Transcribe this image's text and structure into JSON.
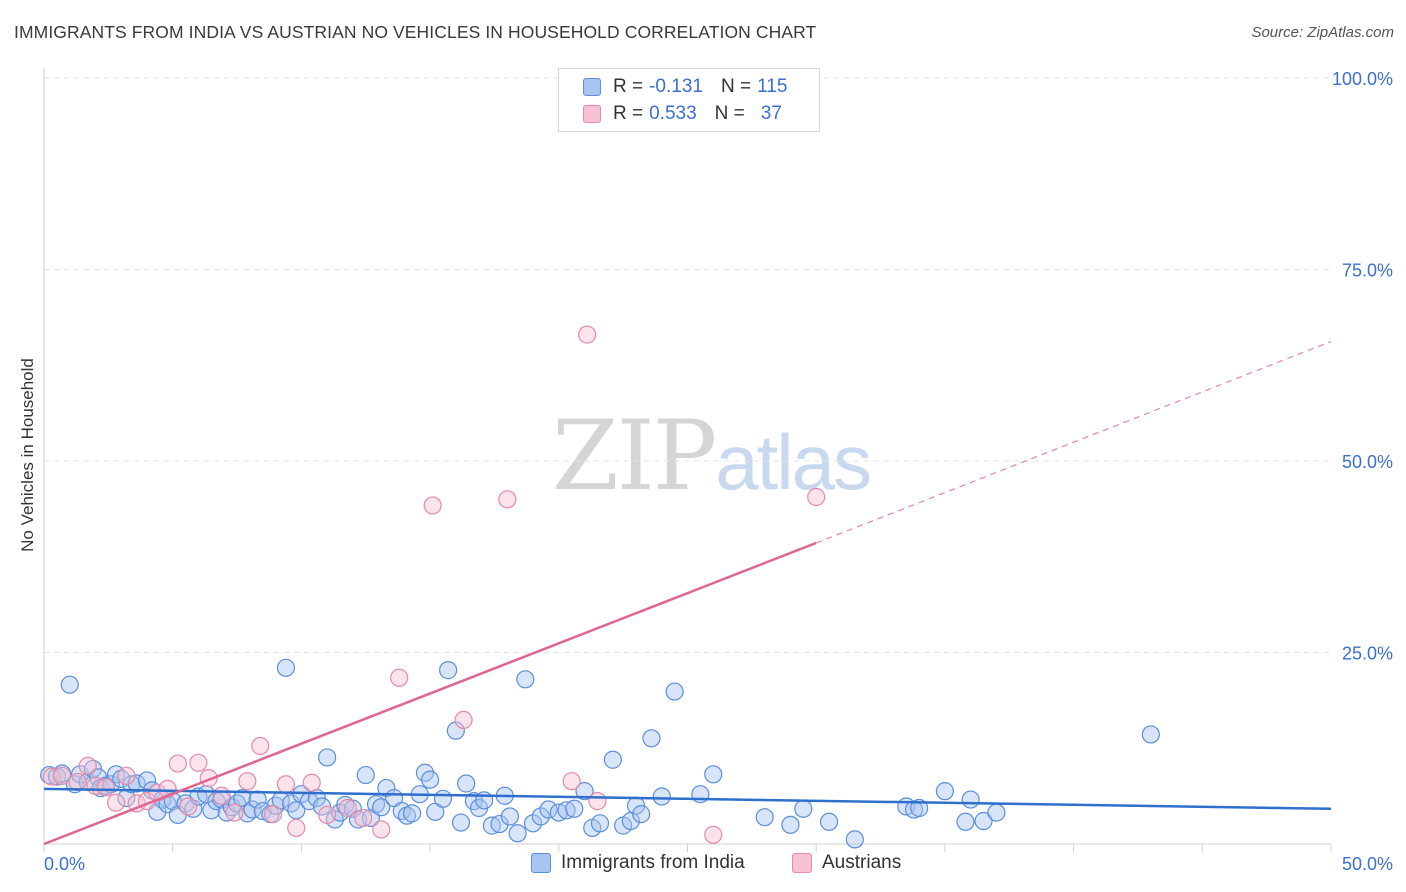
{
  "header": {
    "title": "IMMIGRANTS FROM INDIA VS AUSTRIAN NO VEHICLES IN HOUSEHOLD CORRELATION CHART",
    "source": "Source: ZipAtlas.com"
  },
  "watermark": {
    "zip": "ZIP",
    "atlas": "atlas"
  },
  "legend": {
    "rows": [
      {
        "r_label": "R =",
        "r_value": "-0.131",
        "n_label": "N =",
        "n_value": "115",
        "color": "#a8c4f0"
      },
      {
        "r_label": "R =",
        "r_value": "0.533",
        "n_label": "N =",
        "n_value": "37",
        "color": "#f5b8cc"
      }
    ]
  },
  "bottom_legend": [
    "Immigrants from India",
    "Austrians"
  ],
  "colors": {
    "india_fill": "#a8c4f0",
    "india_stroke": "#5b8fdc",
    "india_line": "#2e6fcc",
    "austria_fill": "#f7c2d3",
    "austria_stroke": "#e58aa8",
    "austria_line": "#e06692",
    "tick_label": "#3b6fd1",
    "grid": "#e3e3e3"
  },
  "chart_data": {
    "type": "scatter",
    "title": "IMMIGRANTS FROM INDIA VS AUSTRIAN NO VEHICLES IN HOUSEHOLD CORRELATION CHART",
    "xlabel": "",
    "ylabel": "No Vehicles in Household",
    "xlim": [
      0,
      50
    ],
    "ylim": [
      0,
      100
    ],
    "x_tick_labels": [
      "0.0%",
      "50.0%"
    ],
    "y_tick_values": [
      25,
      50,
      75,
      100
    ],
    "y_tick_labels": [
      "25.0%",
      "50.0%",
      "75.0%",
      "100.0%"
    ],
    "legend_position": "top-center",
    "series": [
      {
        "name": "Immigrants from India",
        "r": -0.131,
        "n": 115,
        "trend": {
          "x": [
            0,
            50
          ],
          "y": [
            7.2,
            4.6
          ]
        },
        "points": [
          [
            0.2,
            9.0
          ],
          [
            0.5,
            8.8
          ],
          [
            0.7,
            9.2
          ],
          [
            1.0,
            20.8
          ],
          [
            1.2,
            7.8
          ],
          [
            1.4,
            9.1
          ],
          [
            1.7,
            8.1
          ],
          [
            1.9,
            9.8
          ],
          [
            2.1,
            8.7
          ],
          [
            2.2,
            7.3
          ],
          [
            2.4,
            7.6
          ],
          [
            2.6,
            7.8
          ],
          [
            2.8,
            9.1
          ],
          [
            3.0,
            8.5
          ],
          [
            3.2,
            6.0
          ],
          [
            3.4,
            7.8
          ],
          [
            3.6,
            7.9
          ],
          [
            4.0,
            8.3
          ],
          [
            4.2,
            7.0
          ],
          [
            4.4,
            4.2
          ],
          [
            4.6,
            5.8
          ],
          [
            4.8,
            5.2
          ],
          [
            5.0,
            5.6
          ],
          [
            5.2,
            3.8
          ],
          [
            5.5,
            5.3
          ],
          [
            5.8,
            4.6
          ],
          [
            6.0,
            6.2
          ],
          [
            6.3,
            6.5
          ],
          [
            6.5,
            4.4
          ],
          [
            6.7,
            5.6
          ],
          [
            6.9,
            5.8
          ],
          [
            7.1,
            4.1
          ],
          [
            7.3,
            4.8
          ],
          [
            7.5,
            5.3
          ],
          [
            7.7,
            6.0
          ],
          [
            7.9,
            4.0
          ],
          [
            8.1,
            4.5
          ],
          [
            8.3,
            5.8
          ],
          [
            8.5,
            4.3
          ],
          [
            8.8,
            3.9
          ],
          [
            9.0,
            5.0
          ],
          [
            9.2,
            5.7
          ],
          [
            9.4,
            23.0
          ],
          [
            9.6,
            5.3
          ],
          [
            9.8,
            4.4
          ],
          [
            10.0,
            6.5
          ],
          [
            10.3,
            5.6
          ],
          [
            10.6,
            6.0
          ],
          [
            10.8,
            4.9
          ],
          [
            11.0,
            11.3
          ],
          [
            11.3,
            3.2
          ],
          [
            11.5,
            4.1
          ],
          [
            11.7,
            5.1
          ],
          [
            12.0,
            4.6
          ],
          [
            12.2,
            3.2
          ],
          [
            12.5,
            9.0
          ],
          [
            12.7,
            3.4
          ],
          [
            12.9,
            5.2
          ],
          [
            13.1,
            4.8
          ],
          [
            13.3,
            7.3
          ],
          [
            13.6,
            6.0
          ],
          [
            13.9,
            4.3
          ],
          [
            14.1,
            3.7
          ],
          [
            14.3,
            4.0
          ],
          [
            14.6,
            6.5
          ],
          [
            14.8,
            9.3
          ],
          [
            15.0,
            8.4
          ],
          [
            15.2,
            4.2
          ],
          [
            15.5,
            5.9
          ],
          [
            15.7,
            22.7
          ],
          [
            16.0,
            14.8
          ],
          [
            16.2,
            2.8
          ],
          [
            16.4,
            7.9
          ],
          [
            16.7,
            5.6
          ],
          [
            16.9,
            4.7
          ],
          [
            17.1,
            5.7
          ],
          [
            17.4,
            2.4
          ],
          [
            17.7,
            2.6
          ],
          [
            17.9,
            6.3
          ],
          [
            18.1,
            3.6
          ],
          [
            18.4,
            1.4
          ],
          [
            18.7,
            21.5
          ],
          [
            19.0,
            2.7
          ],
          [
            19.3,
            3.6
          ],
          [
            19.6,
            4.5
          ],
          [
            20.0,
            4.1
          ],
          [
            20.3,
            4.4
          ],
          [
            20.6,
            4.6
          ],
          [
            21.0,
            6.9
          ],
          [
            21.3,
            2.1
          ],
          [
            21.6,
            2.7
          ],
          [
            22.1,
            11.0
          ],
          [
            22.5,
            2.4
          ],
          [
            22.8,
            3.0
          ],
          [
            23.0,
            5.0
          ],
          [
            23.2,
            3.9
          ],
          [
            23.6,
            13.8
          ],
          [
            24.0,
            6.2
          ],
          [
            24.5,
            19.9
          ],
          [
            25.5,
            6.5
          ],
          [
            26.0,
            9.1
          ],
          [
            28.0,
            3.5
          ],
          [
            29.0,
            2.5
          ],
          [
            29.5,
            4.6
          ],
          [
            30.5,
            2.9
          ],
          [
            31.5,
            0.6
          ],
          [
            33.5,
            4.9
          ],
          [
            33.8,
            4.5
          ],
          [
            34.0,
            4.7
          ],
          [
            35.0,
            6.9
          ],
          [
            35.8,
            2.9
          ],
          [
            36.0,
            5.8
          ],
          [
            36.5,
            3.0
          ],
          [
            37.0,
            4.1
          ],
          [
            43.0,
            14.3
          ]
        ]
      },
      {
        "name": "Austrians",
        "r": 0.533,
        "n": 37,
        "trend": {
          "x": [
            0,
            30
          ],
          "y": [
            0.0,
            39.3
          ]
        },
        "trend_dashed": {
          "x": [
            30,
            50
          ],
          "y": [
            39.3,
            65.6
          ]
        },
        "points": [
          [
            0.3,
            8.8
          ],
          [
            0.7,
            8.9
          ],
          [
            1.3,
            8.1
          ],
          [
            1.7,
            10.2
          ],
          [
            2.0,
            7.6
          ],
          [
            2.4,
            7.4
          ],
          [
            2.8,
            5.4
          ],
          [
            3.2,
            8.9
          ],
          [
            3.6,
            5.3
          ],
          [
            4.0,
            5.6
          ],
          [
            4.4,
            6.7
          ],
          [
            4.8,
            7.2
          ],
          [
            5.2,
            10.5
          ],
          [
            5.6,
            4.9
          ],
          [
            6.0,
            10.6
          ],
          [
            6.4,
            8.6
          ],
          [
            6.9,
            6.3
          ],
          [
            7.4,
            4.1
          ],
          [
            7.9,
            8.2
          ],
          [
            8.4,
            12.8
          ],
          [
            8.9,
            3.9
          ],
          [
            9.4,
            7.8
          ],
          [
            9.8,
            2.1
          ],
          [
            10.4,
            8.0
          ],
          [
            11.0,
            3.8
          ],
          [
            11.8,
            4.7
          ],
          [
            12.4,
            3.4
          ],
          [
            13.1,
            1.9
          ],
          [
            13.8,
            21.7
          ],
          [
            15.1,
            44.2
          ],
          [
            16.3,
            16.2
          ],
          [
            18.0,
            45.0
          ],
          [
            20.5,
            8.2
          ],
          [
            21.1,
            66.5
          ],
          [
            21.5,
            5.6
          ],
          [
            26.0,
            1.2
          ],
          [
            30.0,
            45.3
          ]
        ]
      }
    ]
  }
}
